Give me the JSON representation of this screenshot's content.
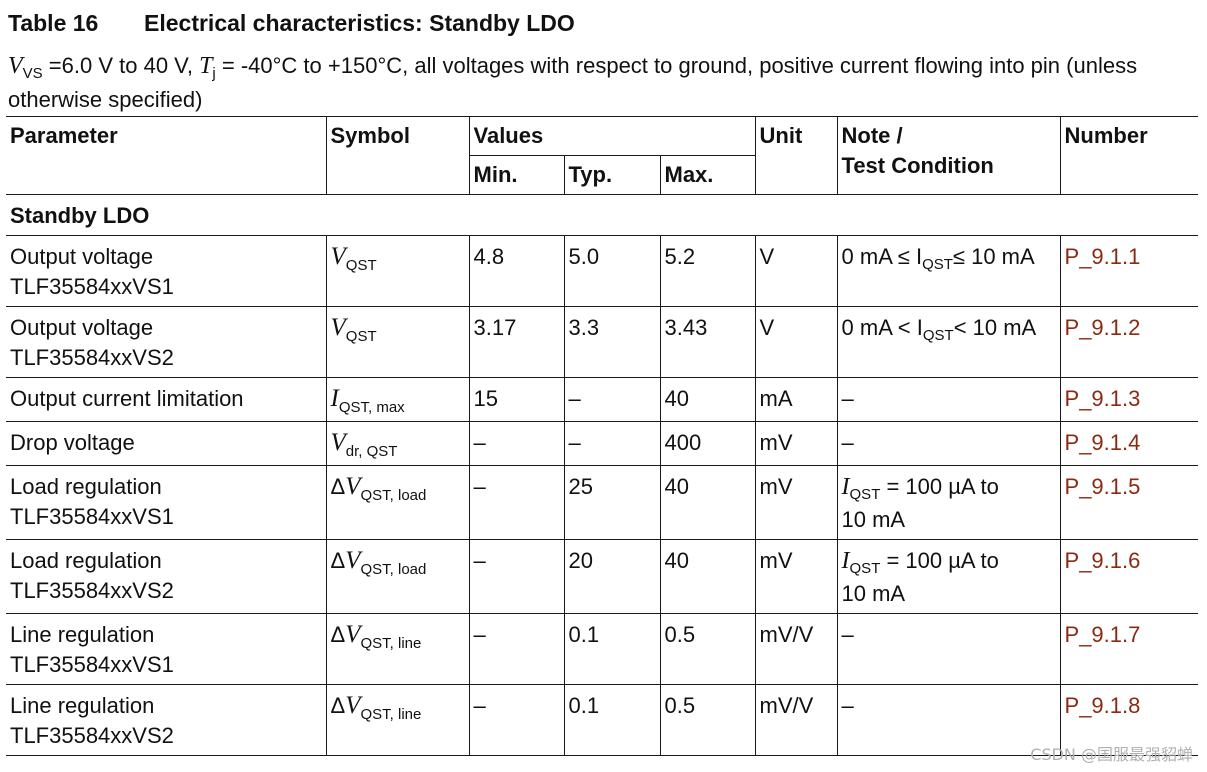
{
  "table_number": "Table 16",
  "table_title": "Electrical characteristics: Standby LDO",
  "conditions": {
    "vs_var": "V",
    "vs_sub": "VS",
    "vs_range": " =6.0 V to 40 V, ",
    "tj_var": "T",
    "tj_sub": "j",
    "rest": " = -40°C to +150°C, all voltages with respect to ground, positive current flowing into pin (unless otherwise specified)"
  },
  "headers": {
    "parameter": "Parameter",
    "symbol": "Symbol",
    "values": "Values",
    "min": "Min.",
    "typ": "Typ.",
    "max": "Max.",
    "unit": "Unit",
    "note_line1": "Note /",
    "note_line2": "Test Condition",
    "number": "Number"
  },
  "section": "Standby LDO",
  "rows": [
    {
      "param1": "Output voltage",
      "param2": "TLF35584xxVS1",
      "sym_pre": "",
      "sym_var": "V",
      "sym_sub": "QST",
      "min": "4.8",
      "typ": "5.0",
      "max": "5.2",
      "unit": "V",
      "note_a": "0 mA ≤ I",
      "note_sub": "QST",
      "note_b": "≤ 10 mA",
      "number": "P_9.1.1"
    },
    {
      "param1": "Output voltage",
      "param2": "TLF35584xxVS2",
      "sym_pre": "",
      "sym_var": "V",
      "sym_sub": "QST",
      "min": "3.17",
      "typ": "3.3",
      "max": "3.43",
      "unit": "V",
      "note_a": "0 mA < I",
      "note_sub": "QST",
      "note_b": "< 10 mA",
      "number": "P_9.1.2"
    },
    {
      "param1": "Output current limitation",
      "param2": "",
      "sym_pre": "",
      "sym_var": "I",
      "sym_sub": "QST, max",
      "min": "15",
      "typ": "–",
      "max": "40",
      "unit": "mA",
      "note": "–",
      "number": "P_9.1.3"
    },
    {
      "param1": "Drop voltage",
      "param2": "",
      "sym_pre": "",
      "sym_var": "V",
      "sym_sub": "dr, QST",
      "min": "–",
      "typ": "–",
      "max": "400",
      "unit": "mV",
      "note": "–",
      "number": "P_9.1.4"
    },
    {
      "param1": "Load regulation",
      "param2": "TLF35584xxVS1",
      "sym_pre": "Δ",
      "sym_var": "V",
      "sym_sub": "QST, load",
      "min": "–",
      "typ": "25",
      "max": "40",
      "unit": "mV",
      "note_var": "I",
      "note_var_sub": "QST",
      "note_rest1": " = 100 µA to",
      "note_rest2": "10 mA",
      "number": "P_9.1.5"
    },
    {
      "param1": "Load regulation",
      "param2": "TLF35584xxVS2",
      "sym_pre": "Δ",
      "sym_var": "V",
      "sym_sub": "QST, load",
      "min": "–",
      "typ": "20",
      "max": "40",
      "unit": "mV",
      "note_var": "I",
      "note_var_sub": "QST",
      "note_rest1": " = 100 µA to",
      "note_rest2": "10 mA",
      "number": "P_9.1.6"
    },
    {
      "param1": "Line regulation",
      "param2": "TLF35584xxVS1",
      "sym_pre": "Δ",
      "sym_var": "V",
      "sym_sub": "QST, line",
      "min": "–",
      "typ": "0.1",
      "max": "0.5",
      "unit": "mV/V",
      "note": "–",
      "number": "P_9.1.7"
    },
    {
      "param1": "Line regulation",
      "param2": "TLF35584xxVS2",
      "sym_pre": "Δ",
      "sym_var": "V",
      "sym_sub": "QST, line",
      "min": "–",
      "typ": "0.1",
      "max": "0.5",
      "unit": "mV/V",
      "note": "–",
      "number": "P_9.1.8"
    }
  ],
  "watermark": "CSDN @国服最强貂蝉"
}
